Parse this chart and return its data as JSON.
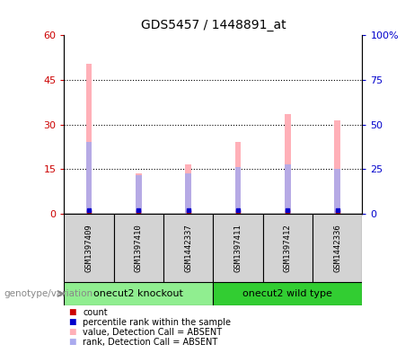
{
  "title": "GDS5457 / 1448891_at",
  "samples": [
    "GSM1397409",
    "GSM1397410",
    "GSM1442337",
    "GSM1397411",
    "GSM1397412",
    "GSM1442336"
  ],
  "pink_bar_heights": [
    50.5,
    13.5,
    16.5,
    24.0,
    33.5,
    31.5
  ],
  "blue_bar_heights": [
    24.0,
    13.0,
    13.5,
    15.5,
    16.5,
    15.0
  ],
  "groups": [
    {
      "label": "onecut2 knockout",
      "start": 0,
      "end": 3,
      "color": "#90EE90"
    },
    {
      "label": "onecut2 wild type",
      "start": 3,
      "end": 6,
      "color": "#32CD32"
    }
  ],
  "ylim_left": [
    0,
    60
  ],
  "ylim_right": [
    0,
    100
  ],
  "yticks_left": [
    0,
    15,
    30,
    45,
    60
  ],
  "ytick_labels_left": [
    "0",
    "15",
    "30",
    "45",
    "60"
  ],
  "yticks_right": [
    0,
    25,
    50,
    75,
    100
  ],
  "ytick_labels_right": [
    "0",
    "25",
    "50",
    "75",
    "100%"
  ],
  "left_tick_color": "#CC0000",
  "right_tick_color": "#0000CC",
  "pink_color": "#FFB0B8",
  "blue_color": "#AAAAEE",
  "bar_width": 0.12,
  "legend_items": [
    {
      "color": "#CC0000",
      "label": "count"
    },
    {
      "color": "#0000CC",
      "label": "percentile rank within the sample"
    },
    {
      "color": "#FFB0B8",
      "label": "value, Detection Call = ABSENT"
    },
    {
      "color": "#AAAAEE",
      "label": "rank, Detection Call = ABSENT"
    }
  ],
  "genotype_label": "genotype/variation",
  "sample_box_color": "#D3D3D3",
  "background_color": "#FFFFFF"
}
